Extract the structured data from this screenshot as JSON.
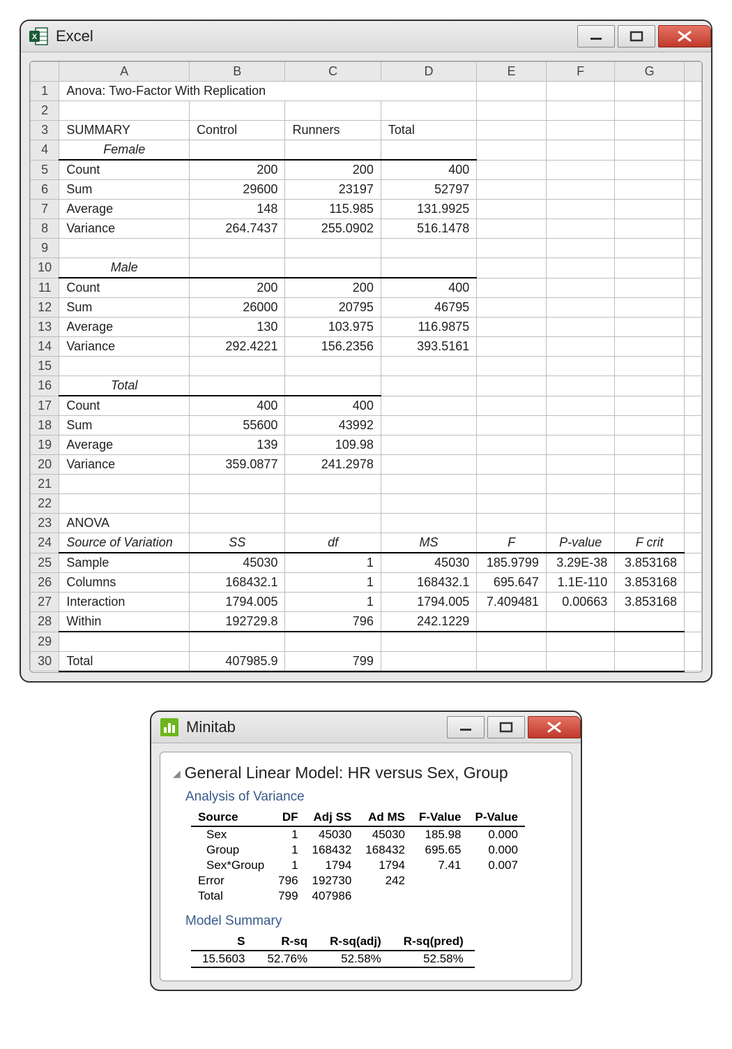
{
  "excel": {
    "app_name": "Excel",
    "icon_bg": "#185c37",
    "icon_accent": "#21a366",
    "columns": [
      "A",
      "B",
      "C",
      "D",
      "E",
      "F",
      "G"
    ],
    "row_count": 30,
    "colH_label": "",
    "cells": {
      "r1": [
        "Anova: Two-Factor With Replication",
        "",
        "",
        "",
        "",
        "",
        ""
      ],
      "r2": [
        "",
        "",
        "",
        "",
        "",
        "",
        ""
      ],
      "r3": [
        "SUMMARY",
        "Control",
        "Runners",
        "Total",
        "",
        "",
        ""
      ],
      "r4": [
        "Female",
        "",
        "",
        "",
        "",
        "",
        ""
      ],
      "r5": [
        "Count",
        "200",
        "200",
        "400",
        "",
        "",
        ""
      ],
      "r6": [
        "Sum",
        "29600",
        "23197",
        "52797",
        "",
        "",
        ""
      ],
      "r7": [
        "Average",
        "148",
        "115.985",
        "131.9925",
        "",
        "",
        ""
      ],
      "r8": [
        "Variance",
        "264.7437",
        "255.0902",
        "516.1478",
        "",
        "",
        ""
      ],
      "r9": [
        "",
        "",
        "",
        "",
        "",
        "",
        ""
      ],
      "r10": [
        "Male",
        "",
        "",
        "",
        "",
        "",
        ""
      ],
      "r11": [
        "Count",
        "200",
        "200",
        "400",
        "",
        "",
        ""
      ],
      "r12": [
        "Sum",
        "26000",
        "20795",
        "46795",
        "",
        "",
        ""
      ],
      "r13": [
        "Average",
        "130",
        "103.975",
        "116.9875",
        "",
        "",
        ""
      ],
      "r14": [
        "Variance",
        "292.4221",
        "156.2356",
        "393.5161",
        "",
        "",
        ""
      ],
      "r15": [
        "",
        "",
        "",
        "",
        "",
        "",
        ""
      ],
      "r16": [
        "Total",
        "",
        "",
        "",
        "",
        "",
        ""
      ],
      "r17": [
        "Count",
        "400",
        "400",
        "",
        "",
        "",
        ""
      ],
      "r18": [
        "Sum",
        "55600",
        "43992",
        "",
        "",
        "",
        ""
      ],
      "r19": [
        "Average",
        "139",
        "109.98",
        "",
        "",
        "",
        ""
      ],
      "r20": [
        "Variance",
        "359.0877",
        "241.2978",
        "",
        "",
        "",
        ""
      ],
      "r21": [
        "",
        "",
        "",
        "",
        "",
        "",
        ""
      ],
      "r22": [
        "",
        "",
        "",
        "",
        "",
        "",
        ""
      ],
      "r23": [
        "ANOVA",
        "",
        "",
        "",
        "",
        "",
        ""
      ],
      "r24": [
        "Source of Variation",
        "SS",
        "df",
        "MS",
        "F",
        "P-value",
        "F crit"
      ],
      "r25": [
        "Sample",
        "45030",
        "1",
        "45030",
        "185.9799",
        "3.29E-38",
        "3.853168"
      ],
      "r26": [
        "Columns",
        "168432.1",
        "1",
        "168432.1",
        "695.647",
        "1.1E-110",
        "3.853168"
      ],
      "r27": [
        "Interaction",
        "1794.005",
        "1",
        "1794.005",
        "7.409481",
        "0.00663",
        "3.853168"
      ],
      "r28": [
        "Within",
        "192729.8",
        "796",
        "242.1229",
        "",
        "",
        ""
      ],
      "r29": [
        "",
        "",
        "",
        "",
        "",
        "",
        ""
      ],
      "r30": [
        "Total",
        "407985.9",
        "799",
        "",
        "",
        "",
        ""
      ]
    }
  },
  "minitab": {
    "app_name": "Minitab",
    "icon_bg": "#6eb61e",
    "title": "General Linear Model: HR versus Sex, Group",
    "sub1": "Analysis of Variance",
    "aov_headers": [
      "Source",
      "DF",
      "Adj SS",
      "Ad MS",
      "F-Value",
      "P-Value"
    ],
    "aov_rows": [
      {
        "cells": [
          "Sex",
          "1",
          "45030",
          "45030",
          "185.98",
          "0.000"
        ],
        "indent": true
      },
      {
        "cells": [
          "Group",
          "1",
          "168432",
          "168432",
          "695.65",
          "0.000"
        ],
        "indent": true
      },
      {
        "cells": [
          "Sex*Group",
          "1",
          "1794",
          "1794",
          "7.41",
          "0.007"
        ],
        "indent": true
      },
      {
        "cells": [
          "Error",
          "796",
          "192730",
          "242",
          "",
          ""
        ],
        "indent": false
      },
      {
        "cells": [
          "Total",
          "799",
          "407986",
          "",
          "",
          ""
        ],
        "indent": false
      }
    ],
    "sub2": "Model Summary",
    "ms_headers": [
      "S",
      "R-sq",
      "R-sq(adj)",
      "R-sq(pred)"
    ],
    "ms_row": [
      "15.5603",
      "52.76%",
      "52.58%",
      "52.58%"
    ]
  }
}
